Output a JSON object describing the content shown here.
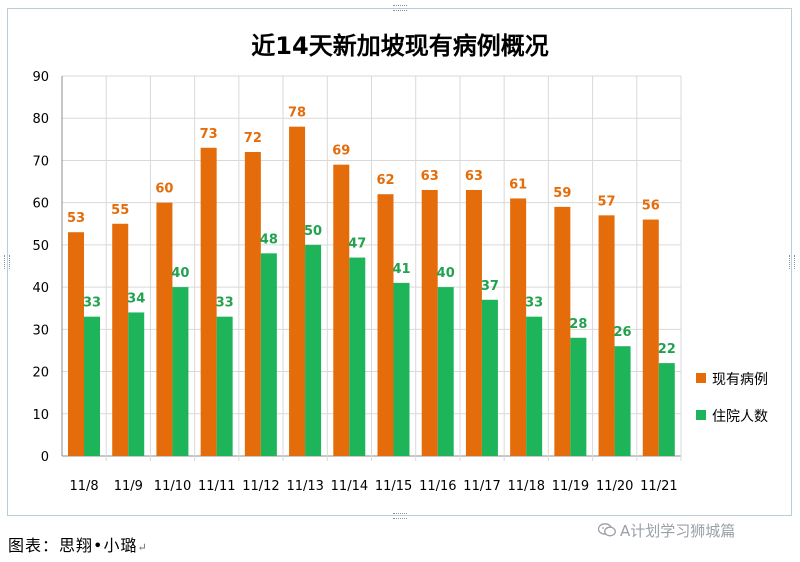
{
  "chart_data": {
    "type": "bar",
    "title": "近14天新加坡现有病例概况",
    "categories": [
      "11/8",
      "11/9",
      "11/10",
      "11/11",
      "11/12",
      "11/13",
      "11/14",
      "11/15",
      "11/16",
      "11/17",
      "11/18",
      "11/19",
      "11/20",
      "11/21"
    ],
    "series": [
      {
        "name": "现有病例",
        "color": "#e46c0a",
        "label_color": "#e46c0a",
        "values": [
          53,
          55,
          60,
          73,
          72,
          78,
          69,
          62,
          63,
          63,
          61,
          59,
          57,
          56
        ]
      },
      {
        "name": "住院人数",
        "color": "#1eb45a",
        "label_color": "#22a24e",
        "values": [
          33,
          34,
          40,
          33,
          48,
          50,
          47,
          41,
          40,
          37,
          33,
          28,
          26,
          22
        ]
      }
    ],
    "ylim": [
      0,
      90
    ],
    "yticks": [
      0,
      10,
      20,
      30,
      40,
      50,
      60,
      70,
      80,
      90
    ],
    "grid": true,
    "legend_position": "right"
  },
  "caption": "图表：思翔•小璐",
  "caption_mark": "↵",
  "watermark": {
    "text": "A计划学习狮城篇",
    "icon": "wechat-icon"
  }
}
